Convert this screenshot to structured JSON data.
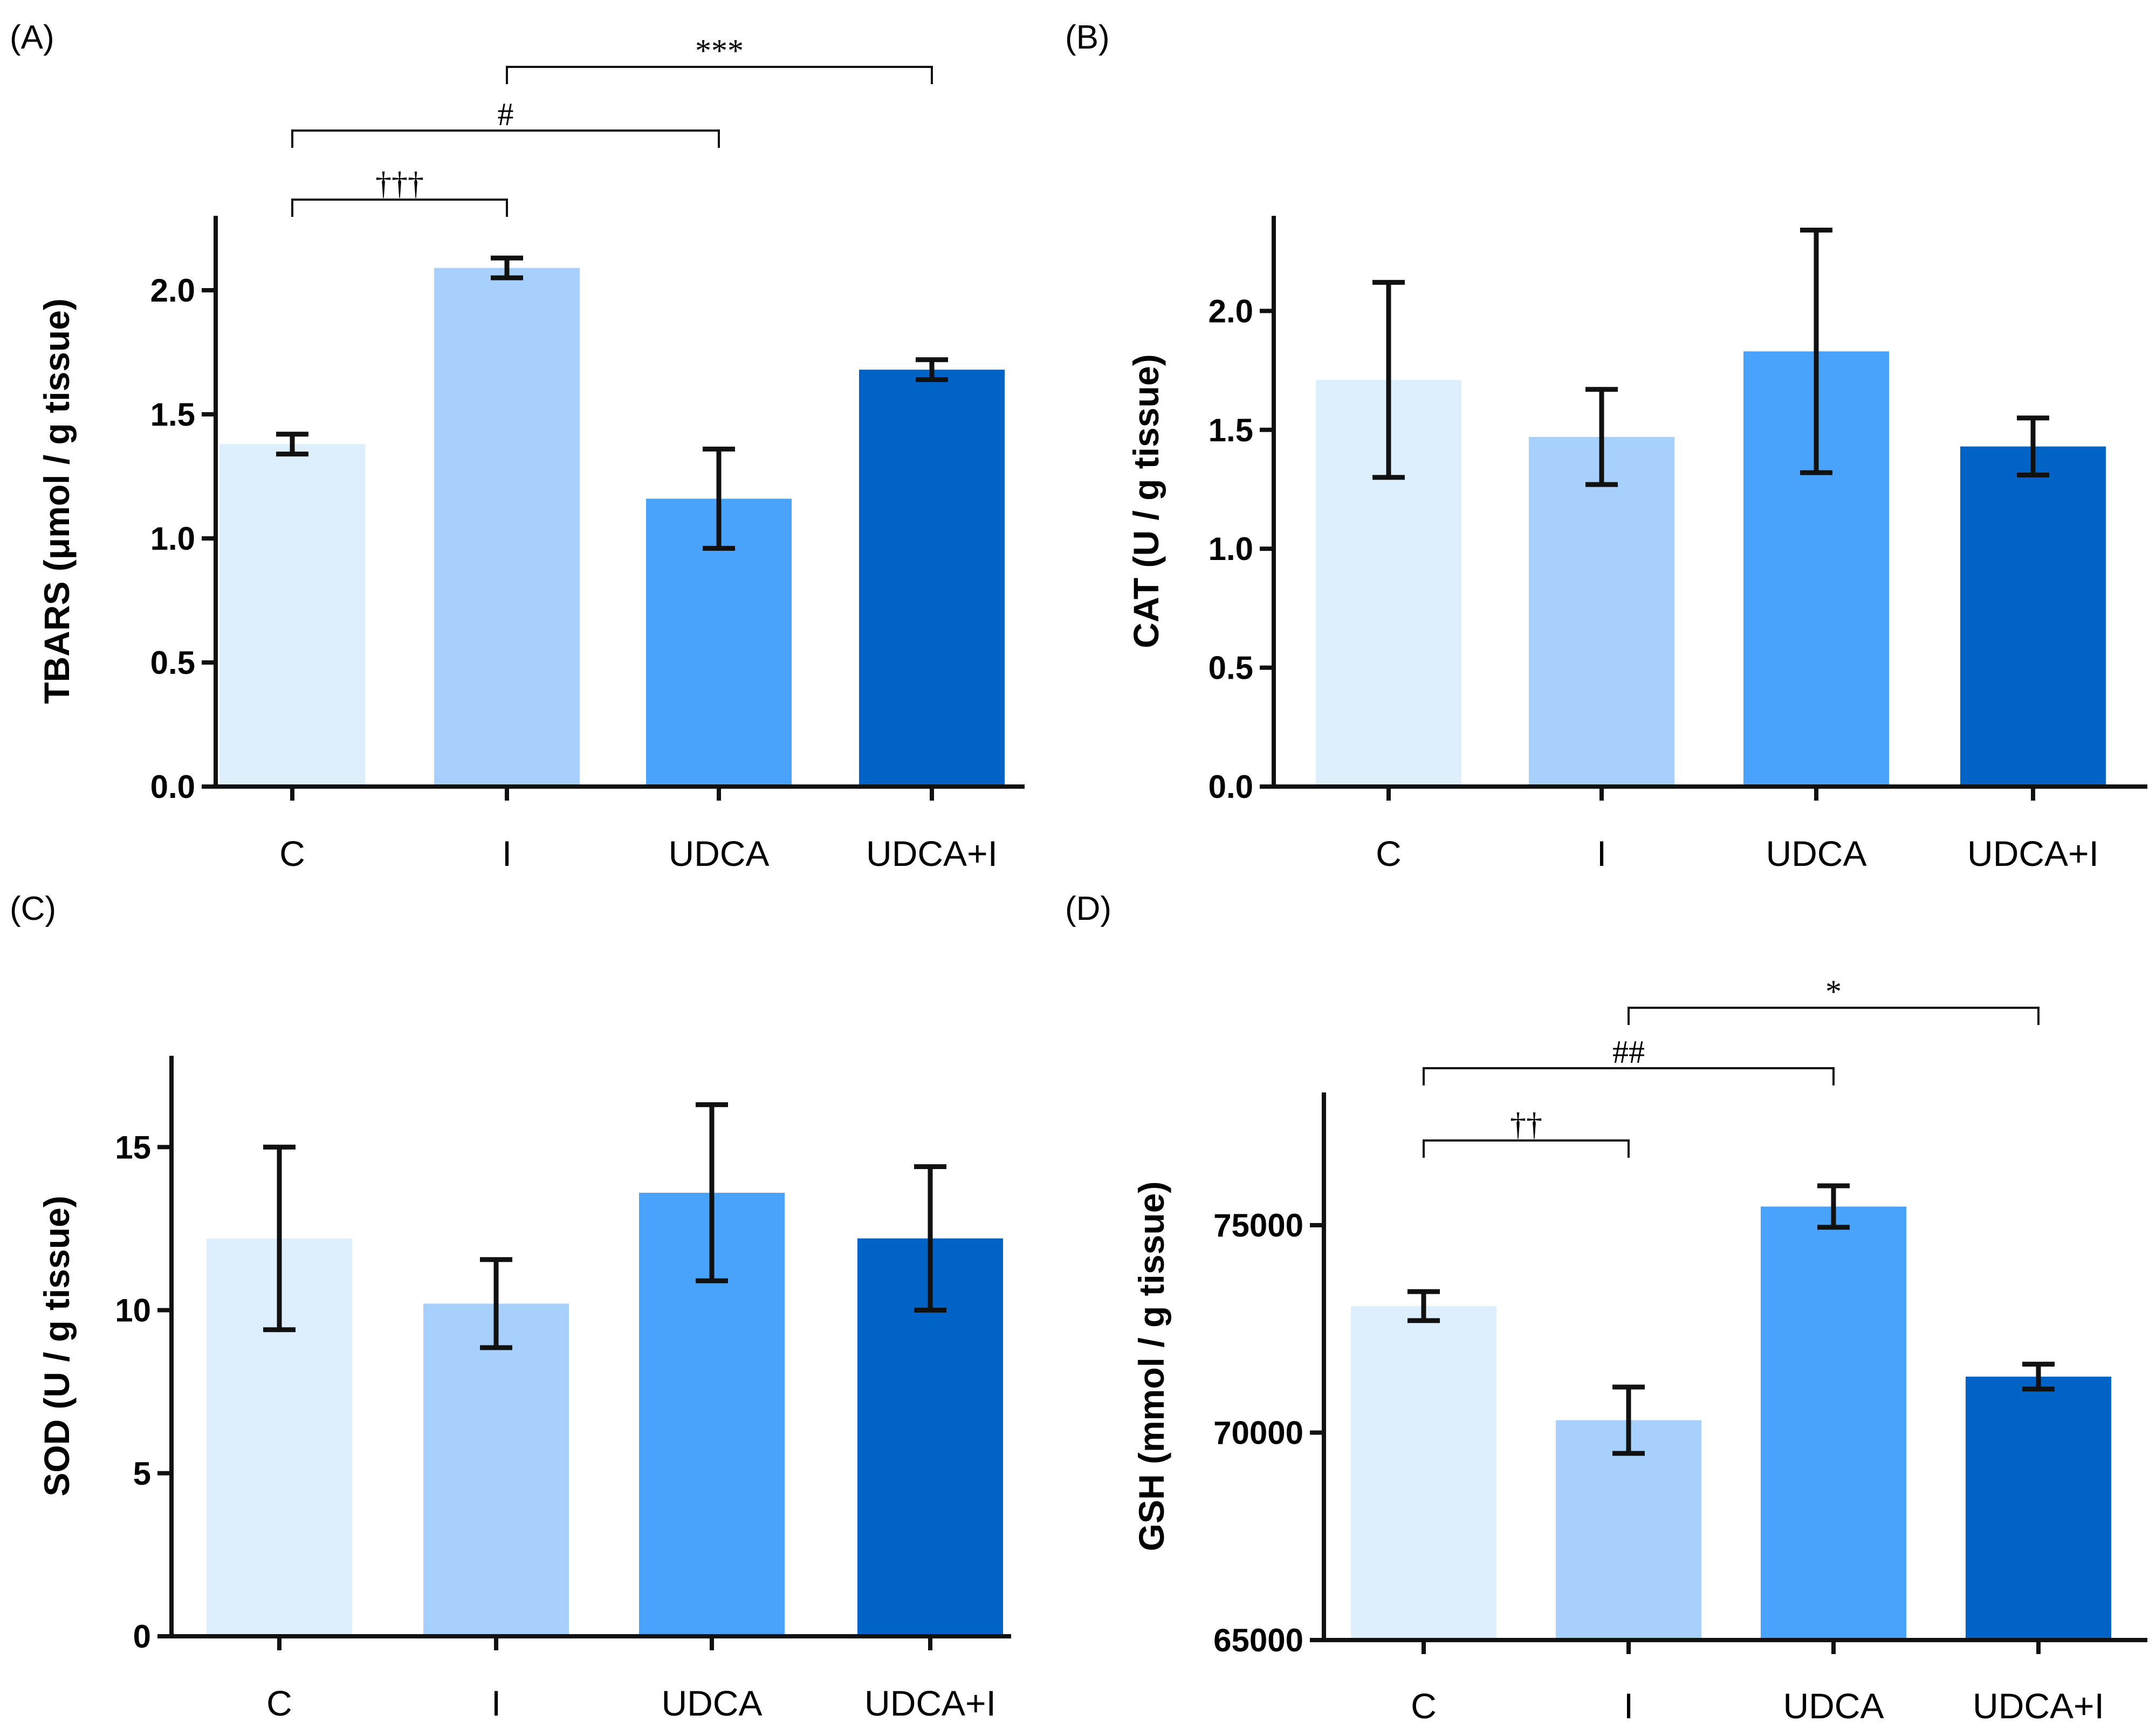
{
  "chart_data": [
    {
      "type": "bar",
      "panel_label": "(A)",
      "categories": [
        "C",
        "I",
        "UDCA",
        "UDCA+I"
      ],
      "values": [
        1.38,
        2.09,
        1.16,
        1.68
      ],
      "errors": [
        0.04,
        0.04,
        0.2,
        0.04
      ],
      "ylabel": "TBARS (μmol / g tissue)",
      "ylim": [
        0,
        2.3
      ],
      "yticks": [
        0.0,
        0.5,
        1.0,
        1.5,
        2.0
      ],
      "ytick_labels": [
        "0.0",
        "0.5",
        "1.0",
        "1.5",
        "2.0"
      ],
      "colors": [
        "#ddeefd",
        "#a7d1fc",
        "#4aa3fb",
        "#0263c6"
      ],
      "significance": [
        {
          "from": 0,
          "to": 1,
          "label": "†††"
        },
        {
          "from": 0,
          "to": 2,
          "label": "#"
        },
        {
          "from": 1,
          "to": 3,
          "label": "***"
        }
      ]
    },
    {
      "type": "bar",
      "panel_label": "(B)",
      "categories": [
        "C",
        "I",
        "UDCA",
        "UDCA+I"
      ],
      "values": [
        1.71,
        1.47,
        1.83,
        1.43
      ],
      "errors": [
        0.41,
        0.2,
        0.51,
        0.12
      ],
      "ylabel": "CAT (U / g tissue)",
      "ylim": [
        0,
        2.4
      ],
      "yticks": [
        0.0,
        0.5,
        1.0,
        1.5,
        2.0
      ],
      "ytick_labels": [
        "0.0",
        "0.5",
        "1.0",
        "1.5",
        "2.0"
      ],
      "colors": [
        "#ddeefd",
        "#a7d1fc",
        "#4aa3fb",
        "#0263c6"
      ],
      "significance": []
    },
    {
      "type": "bar",
      "panel_label": "(C)",
      "categories": [
        "C",
        "I",
        "UDCA",
        "UDCA+I"
      ],
      "values": [
        12.2,
        10.2,
        13.6,
        12.2
      ],
      "errors": [
        2.8,
        1.35,
        2.7,
        2.2
      ],
      "ylabel": "SOD (U / g tissue)",
      "ylim": [
        0,
        17.8
      ],
      "yticks": [
        0,
        5,
        10,
        15
      ],
      "ytick_labels": [
        "0",
        "5",
        "10",
        "15"
      ],
      "colors": [
        "#ddeefd",
        "#a7d1fc",
        "#4aa3fb",
        "#0263c6"
      ],
      "significance": []
    },
    {
      "type": "bar",
      "panel_label": "(D)",
      "categories": [
        "C",
        "I",
        "UDCA",
        "UDCA+I"
      ],
      "values": [
        73050,
        70300,
        75450,
        71350
      ],
      "errors": [
        350,
        800,
        500,
        300
      ],
      "ylabel": "GSH (mmol / g tissue)",
      "ylim": [
        65000,
        78200
      ],
      "yticks": [
        65000,
        70000,
        75000
      ],
      "ytick_labels": [
        "65000",
        "70000",
        "75000"
      ],
      "colors": [
        "#ddeefd",
        "#a7d1fc",
        "#4aa3fb",
        "#0263c6"
      ],
      "significance": [
        {
          "from": 0,
          "to": 1,
          "label": "††"
        },
        {
          "from": 0,
          "to": 2,
          "label": "##"
        },
        {
          "from": 1,
          "to": 3,
          "label": "*"
        }
      ]
    }
  ]
}
